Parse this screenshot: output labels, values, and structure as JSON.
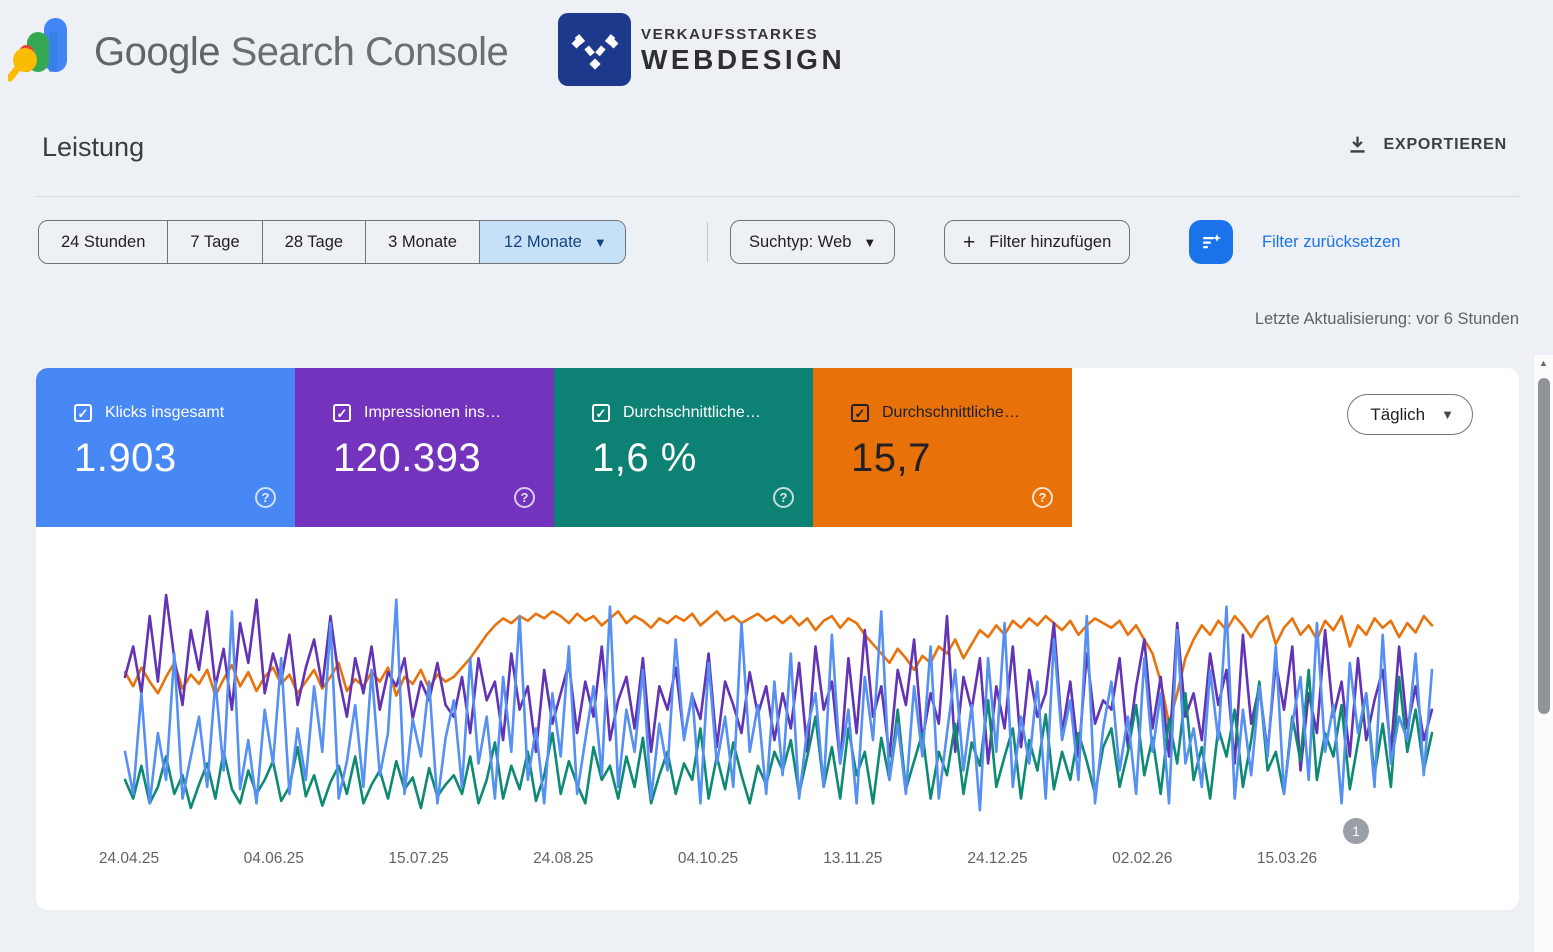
{
  "header": {
    "gsc_wordmark_part1": "Google",
    "gsc_wordmark_part2": " Search Console",
    "partner_logo_line1": "VERKAUFSSTARKES",
    "partner_logo_line2": "WEBDESIGN",
    "partner_logo_color": "#1c398c"
  },
  "page": {
    "title": "Leistung",
    "export_label": "EXPORTIEREN",
    "last_update": "Letzte Aktualisierung: vor 6 Stunden"
  },
  "filters": {
    "date_tabs": [
      {
        "label": "24 Stunden",
        "selected": false
      },
      {
        "label": "7 Tage",
        "selected": false
      },
      {
        "label": "28 Tage",
        "selected": false
      },
      {
        "label": "3 Monate",
        "selected": false
      },
      {
        "label": "12 Monate",
        "selected": true
      }
    ],
    "search_type_label": "Suchtyp: Web",
    "add_filter_label": "Filter hinzufügen",
    "reset_label": "Filter zurücksetzen",
    "accent_color": "#1a73e8"
  },
  "metric_cards": [
    {
      "label": "Klicks insgesamt",
      "value": "1.903",
      "color": "#4888f4",
      "text_color": "#ffffff",
      "checked": true
    },
    {
      "label": "Impressionen ins…",
      "value": "120.393",
      "color": "#7333bd",
      "text_color": "#ffffff",
      "checked": true
    },
    {
      "label": "Durchschnittliche…",
      "value": "1,6 %",
      "color": "#0d8174",
      "text_color": "#ffffff",
      "checked": true
    },
    {
      "label": "Durchschnittliche…",
      "value": "15,7",
      "color": "#e8710a",
      "text_color": "#202124",
      "checked": true
    }
  ],
  "granularity": {
    "label": "Täglich"
  },
  "annotation_badge": "1",
  "chart_data": {
    "type": "line",
    "title": "",
    "xlabel": "",
    "ylabel": "",
    "grid": false,
    "legend_position": "none",
    "note": "Daily series over 12 months; no y-axis shown in UI, values are visual estimates on a 0-100 relative-height scale",
    "x_range_labels": [
      "24.04.25",
      "15.03.26"
    ],
    "x_tick_labels": [
      "24.04.25",
      "04.06.25",
      "15.07.25",
      "24.08.25",
      "04.10.25",
      "13.11.25",
      "24.12.25",
      "02.02.26",
      "15.03.26"
    ],
    "ylim": [
      0,
      100
    ],
    "series": [
      {
        "name": "Durchschnittliche Position",
        "color": "#e8730c",
        "total": "15,7",
        "values": [
          64,
          58,
          66,
          60,
          55,
          62,
          68,
          57,
          63,
          59,
          65,
          54,
          61,
          67,
          58,
          64,
          56,
          62,
          66,
          59,
          63,
          55,
          60,
          65,
          57,
          62,
          68,
          56,
          61,
          58,
          64,
          60,
          66,
          54,
          62,
          59,
          65,
          57,
          63,
          60,
          62,
          66,
          70,
          75,
          80,
          84,
          87,
          85,
          88,
          86,
          89,
          87,
          90,
          88,
          85,
          89,
          86,
          88,
          84,
          87,
          90,
          85,
          88,
          86,
          83,
          87,
          85,
          88,
          86,
          89,
          84,
          87,
          90,
          86,
          88,
          85,
          87,
          89,
          86,
          88,
          85,
          88,
          84,
          87,
          82,
          86,
          88,
          83,
          87,
          85,
          80,
          76,
          72,
          68,
          74,
          70,
          65,
          71,
          68,
          75,
          72,
          78,
          70,
          76,
          82,
          79,
          84,
          80,
          86,
          83,
          87,
          84,
          88,
          85,
          82,
          86,
          80,
          84,
          87,
          85,
          83,
          86,
          80,
          84,
          78,
          72,
          60,
          42,
          55,
          70,
          78,
          84,
          80,
          86,
          82,
          88,
          84,
          79,
          85,
          88,
          76,
          83,
          87,
          80,
          84,
          78,
          86,
          82,
          88,
          75,
          84,
          80,
          87,
          83,
          86,
          79,
          85,
          81,
          88,
          84
        ]
      },
      {
        "name": "Impressionen insgesamt",
        "color": "#6233b5",
        "total": "120.393",
        "values": [
          62,
          75,
          55,
          88,
          60,
          97,
          70,
          50,
          82,
          65,
          90,
          58,
          74,
          48,
          85,
          68,
          95,
          55,
          72,
          60,
          80,
          50,
          66,
          78,
          58,
          88,
          62,
          45,
          70,
          55,
          75,
          48,
          64,
          58,
          70,
          44,
          60,
          52,
          68,
          50,
          45,
          62,
          38,
          70,
          52,
          60,
          35,
          72,
          48,
          58,
          30,
          65,
          42,
          55,
          68,
          38,
          60,
          45,
          75,
          35,
          52,
          62,
          40,
          70,
          30,
          58,
          48,
          66,
          36,
          54,
          44,
          72,
          32,
          60,
          50,
          38,
          64,
          46,
          58,
          35,
          55,
          40,
          68,
          30,
          75,
          48,
          60,
          25,
          70,
          38,
          82,
          45,
          58,
          28,
          65,
          50,
          78,
          35,
          55,
          42,
          88,
          30,
          62,
          48,
          70,
          25,
          58,
          40,
          75,
          32,
          65,
          45,
          55,
          85,
          38,
          60,
          28,
          72,
          42,
          52,
          48,
          70,
          32,
          58,
          78,
          40,
          62,
          28,
          85,
          45,
          55,
          35,
          72,
          50,
          65,
          25,
          80,
          42,
          58,
          30,
          68,
          48,
          75,
          22,
          55,
          38,
          82,
          45,
          60,
          28,
          70,
          35,
          52,
          65,
          30,
          75,
          40,
          58,
          35,
          48
        ]
      },
      {
        "name": "Durchschnittliche CTR",
        "color": "#0e8a72",
        "total": "1,6 %",
        "values": [
          18,
          10,
          24,
          8,
          15,
          28,
          12,
          20,
          6,
          16,
          25,
          10,
          30,
          14,
          8,
          22,
          12,
          18,
          26,
          9,
          15,
          32,
          11,
          20,
          7,
          17,
          24,
          12,
          28,
          8,
          16,
          22,
          10,
          26,
          14,
          19,
          6,
          23,
          11,
          16,
          20,
          12,
          28,
          8,
          18,
          34,
          10,
          24,
          14,
          30,
          9,
          20,
          38,
          12,
          26,
          16,
          8,
          32,
          18,
          24,
          10,
          28,
          15,
          36,
          8,
          20,
          30,
          12,
          25,
          18,
          40,
          10,
          28,
          14,
          34,
          20,
          8,
          24,
          16,
          30,
          22,
          35,
          12,
          28,
          45,
          15,
          32,
          10,
          40,
          20,
          30,
          8,
          36,
          18,
          48,
          14,
          26,
          38,
          10,
          30,
          20,
          42,
          12,
          34,
          24,
          52,
          15,
          28,
          40,
          10,
          35,
          22,
          46,
          14,
          30,
          18,
          38,
          26,
          12,
          32,
          40,
          15,
          30,
          50,
          20,
          36,
          12,
          44,
          25,
          55,
          18,
          32,
          10,
          40,
          28,
          48,
          15,
          35,
          60,
          22,
          30,
          12,
          45,
          26,
          65,
          18,
          38,
          28,
          50,
          14,
          34,
          55,
          20,
          42,
          15,
          62,
          30,
          48,
          22,
          38
        ]
      },
      {
        "name": "Klicks insgesamt",
        "color": "#5590f2",
        "total": "1.903",
        "values": [
          30,
          12,
          55,
          8,
          38,
          18,
          72,
          10,
          28,
          45,
          15,
          60,
          22,
          90,
          14,
          35,
          8,
          48,
          25,
          70,
          12,
          40,
          18,
          58,
          30,
          85,
          10,
          26,
          50,
          15,
          65,
          20,
          38,
          95,
          12,
          44,
          28,
          60,
          8,
          36,
          52,
          15,
          70,
          25,
          45,
          10,
          62,
          30,
          88,
          18,
          40,
          8,
          55,
          28,
          75,
          12,
          35,
          58,
          20,
          92,
          15,
          48,
          30,
          65,
          10,
          42,
          22,
          78,
          35,
          55,
          8,
          68,
          25,
          45,
          15,
          85,
          30,
          50,
          12,
          60,
          20,
          72,
          10,
          40,
          55,
          15,
          80,
          25,
          48,
          8,
          62,
          35,
          90,
          18,
          42,
          12,
          58,
          28,
          75,
          10,
          38,
          65,
          22,
          50,
          5,
          70,
          30,
          85,
          15,
          45,
          25,
          60,
          10,
          78,
          35,
          52,
          18,
          88,
          8,
          40,
          60,
          22,
          45,
          12,
          70,
          30,
          55,
          8,
          82,
          25,
          40,
          15,
          65,
          35,
          92,
          10,
          48,
          20,
          58,
          28,
          75,
          12,
          42,
          62,
          18,
          85,
          30,
          50,
          8,
          68,
          38,
          55,
          15,
          80,
          25,
          45,
          35,
          72,
          20,
          65
        ]
      }
    ]
  },
  "scrollbar": {
    "up_glyph": "▲"
  }
}
